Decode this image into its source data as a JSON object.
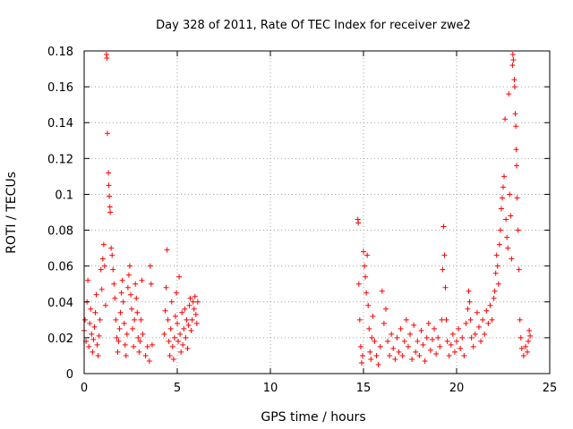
{
  "chart_data": {
    "type": "scatter",
    "title": "Day 328 of 2011, Rate Of TEC Index for receiver zwe2",
    "xlabel": "GPS time / hours",
    "ylabel": "ROTI / TECUs",
    "xlim": [
      0,
      25
    ],
    "ylim": [
      0,
      0.18
    ],
    "xticks": [
      "0",
      "5",
      "10",
      "15",
      "20",
      "25"
    ],
    "yticks": [
      "0",
      "0.02",
      "0.04",
      "0.06",
      "0.08",
      "0.1",
      "0.12",
      "0.14",
      "0.16",
      "0.18"
    ],
    "grid": true,
    "marker": "+",
    "color": "#ff0000",
    "series": [
      {
        "points": [
          [
            0.0,
            0.024
          ],
          [
            0.05,
            0.03
          ],
          [
            0.1,
            0.018
          ],
          [
            0.15,
            0.04
          ],
          [
            0.2,
            0.052
          ],
          [
            0.25,
            0.015
          ],
          [
            0.3,
            0.028
          ],
          [
            0.35,
            0.036
          ],
          [
            0.4,
            0.022
          ],
          [
            0.45,
            0.012
          ],
          [
            0.5,
            0.019
          ],
          [
            0.55,
            0.026
          ],
          [
            0.6,
            0.034
          ],
          [
            0.65,
            0.044
          ],
          [
            0.7,
            0.016
          ],
          [
            0.75,
            0.01
          ],
          [
            0.8,
            0.021
          ],
          [
            0.85,
            0.03
          ],
          [
            0.9,
            0.058
          ],
          [
            0.95,
            0.047
          ],
          [
            1.0,
            0.064
          ],
          [
            1.05,
            0.072
          ],
          [
            1.1,
            0.06
          ],
          [
            1.15,
            0.038
          ],
          [
            1.2,
            0.178
          ],
          [
            1.22,
            0.176
          ],
          [
            1.25,
            0.134
          ],
          [
            1.3,
            0.112
          ],
          [
            1.32,
            0.105
          ],
          [
            1.35,
            0.099
          ],
          [
            1.38,
            0.093
          ],
          [
            1.4,
            0.09
          ],
          [
            1.45,
            0.07
          ],
          [
            1.5,
            0.066
          ],
          [
            1.55,
            0.058
          ],
          [
            1.6,
            0.05
          ],
          [
            1.65,
            0.042
          ],
          [
            1.7,
            0.03
          ],
          [
            1.75,
            0.02
          ],
          [
            1.8,
            0.012
          ],
          [
            1.85,
            0.018
          ],
          [
            1.9,
            0.025
          ],
          [
            1.95,
            0.034
          ],
          [
            2.0,
            0.045
          ],
          [
            2.05,
            0.052
          ],
          [
            2.1,
            0.04
          ],
          [
            2.15,
            0.028
          ],
          [
            2.2,
            0.016
          ],
          [
            2.25,
            0.01
          ],
          [
            2.3,
            0.022
          ],
          [
            2.35,
            0.048
          ],
          [
            2.4,
            0.055
          ],
          [
            2.45,
            0.06
          ],
          [
            2.5,
            0.044
          ],
          [
            2.55,
            0.036
          ],
          [
            2.6,
            0.025
          ],
          [
            2.65,
            0.015
          ],
          [
            2.7,
            0.03
          ],
          [
            2.75,
            0.05
          ],
          [
            2.8,
            0.042
          ],
          [
            2.85,
            0.034
          ],
          [
            2.9,
            0.02
          ],
          [
            2.95,
            0.012
          ],
          [
            3.0,
            0.018
          ],
          [
            3.05,
            0.03
          ],
          [
            3.1,
            0.052
          ],
          [
            3.15,
            0.022
          ],
          [
            3.3,
            0.01
          ],
          [
            3.4,
            0.015
          ],
          [
            3.5,
            0.007
          ],
          [
            3.55,
            0.06
          ],
          [
            3.6,
            0.05
          ],
          [
            3.65,
            0.016
          ],
          [
            4.3,
            0.022
          ],
          [
            4.35,
            0.035
          ],
          [
            4.4,
            0.048
          ],
          [
            4.45,
            0.069
          ],
          [
            4.5,
            0.03
          ],
          [
            4.55,
            0.018
          ],
          [
            4.6,
            0.01
          ],
          [
            4.65,
            0.025
          ],
          [
            4.7,
            0.04
          ],
          [
            4.75,
            0.015
          ],
          [
            4.8,
            0.008
          ],
          [
            4.85,
            0.02
          ],
          [
            4.9,
            0.032
          ],
          [
            4.95,
            0.045
          ],
          [
            5.0,
            0.028
          ],
          [
            5.05,
            0.018
          ],
          [
            5.1,
            0.054
          ],
          [
            5.15,
            0.022
          ],
          [
            5.2,
            0.012
          ],
          [
            5.25,
            0.034
          ],
          [
            5.3,
            0.016
          ],
          [
            5.35,
            0.025
          ],
          [
            5.4,
            0.036
          ],
          [
            5.45,
            0.02
          ],
          [
            5.5,
            0.03
          ],
          [
            5.55,
            0.014
          ],
          [
            5.6,
            0.027
          ],
          [
            5.65,
            0.038
          ],
          [
            5.7,
            0.042
          ],
          [
            5.75,
            0.024
          ],
          [
            5.8,
            0.03
          ],
          [
            5.85,
            0.04
          ],
          [
            5.9,
            0.036
          ],
          [
            5.95,
            0.043
          ],
          [
            6.0,
            0.033
          ],
          [
            6.05,
            0.028
          ],
          [
            6.1,
            0.04
          ],
          [
            14.7,
            0.086
          ],
          [
            14.72,
            0.084
          ],
          [
            14.75,
            0.05
          ],
          [
            14.8,
            0.03
          ],
          [
            14.85,
            0.015
          ],
          [
            14.9,
            0.006
          ],
          [
            14.95,
            0.01
          ],
          [
            15.0,
            0.068
          ],
          [
            15.05,
            0.06
          ],
          [
            15.1,
            0.054
          ],
          [
            15.15,
            0.045
          ],
          [
            15.2,
            0.066
          ],
          [
            15.25,
            0.038
          ],
          [
            15.3,
            0.025
          ],
          [
            15.35,
            0.012
          ],
          [
            15.4,
            0.008
          ],
          [
            15.45,
            0.02
          ],
          [
            15.5,
            0.032
          ],
          [
            15.6,
            0.018
          ],
          [
            15.7,
            0.01
          ],
          [
            15.8,
            0.005
          ],
          [
            15.9,
            0.015
          ],
          [
            16.0,
            0.046
          ],
          [
            16.1,
            0.028
          ],
          [
            16.2,
            0.036
          ],
          [
            16.3,
            0.018
          ],
          [
            16.4,
            0.01
          ],
          [
            16.5,
            0.022
          ],
          [
            16.6,
            0.014
          ],
          [
            16.7,
            0.008
          ],
          [
            16.8,
            0.02
          ],
          [
            16.9,
            0.012
          ],
          [
            17.0,
            0.025
          ],
          [
            17.1,
            0.01
          ],
          [
            17.2,
            0.018
          ],
          [
            17.3,
            0.03
          ],
          [
            17.4,
            0.015
          ],
          [
            17.5,
            0.022
          ],
          [
            17.6,
            0.008
          ],
          [
            17.7,
            0.027
          ],
          [
            17.8,
            0.012
          ],
          [
            17.9,
            0.018
          ],
          [
            18.0,
            0.01
          ],
          [
            18.1,
            0.024
          ],
          [
            18.2,
            0.016
          ],
          [
            18.3,
            0.007
          ],
          [
            18.4,
            0.02
          ],
          [
            18.5,
            0.028
          ],
          [
            18.6,
            0.013
          ],
          [
            18.7,
            0.019
          ],
          [
            18.8,
            0.025
          ],
          [
            18.9,
            0.011
          ],
          [
            19.0,
            0.02
          ],
          [
            19.1,
            0.015
          ],
          [
            19.2,
            0.03
          ],
          [
            19.25,
            0.058
          ],
          [
            19.3,
            0.082
          ],
          [
            19.35,
            0.066
          ],
          [
            19.4,
            0.048
          ],
          [
            19.45,
            0.03
          ],
          [
            19.5,
            0.018
          ],
          [
            19.6,
            0.01
          ],
          [
            19.7,
            0.016
          ],
          [
            19.8,
            0.022
          ],
          [
            19.9,
            0.012
          ],
          [
            20.0,
            0.018
          ],
          [
            20.1,
            0.025
          ],
          [
            20.2,
            0.014
          ],
          [
            20.3,
            0.02
          ],
          [
            20.4,
            0.01
          ],
          [
            20.5,
            0.028
          ],
          [
            20.6,
            0.036
          ],
          [
            20.65,
            0.046
          ],
          [
            20.7,
            0.04
          ],
          [
            20.75,
            0.03
          ],
          [
            20.8,
            0.02
          ],
          [
            20.9,
            0.015
          ],
          [
            21.0,
            0.022
          ],
          [
            21.1,
            0.034
          ],
          [
            21.2,
            0.026
          ],
          [
            21.3,
            0.018
          ],
          [
            21.4,
            0.03
          ],
          [
            21.5,
            0.022
          ],
          [
            21.6,
            0.035
          ],
          [
            21.7,
            0.028
          ],
          [
            21.8,
            0.038
          ],
          [
            21.9,
            0.03
          ],
          [
            22.0,
            0.042
          ],
          [
            22.05,
            0.046
          ],
          [
            22.1,
            0.056
          ],
          [
            22.15,
            0.066
          ],
          [
            22.2,
            0.06
          ],
          [
            22.25,
            0.05
          ],
          [
            22.3,
            0.072
          ],
          [
            22.35,
            0.08
          ],
          [
            22.4,
            0.092
          ],
          [
            22.45,
            0.098
          ],
          [
            22.5,
            0.104
          ],
          [
            22.55,
            0.11
          ],
          [
            22.6,
            0.142
          ],
          [
            22.65,
            0.086
          ],
          [
            22.7,
            0.076
          ],
          [
            22.75,
            0.07
          ],
          [
            22.8,
            0.156
          ],
          [
            22.85,
            0.1
          ],
          [
            22.9,
            0.088
          ],
          [
            22.95,
            0.064
          ],
          [
            23.0,
            0.172
          ],
          [
            23.02,
            0.178
          ],
          [
            23.05,
            0.175
          ],
          [
            23.1,
            0.164
          ],
          [
            23.12,
            0.16
          ],
          [
            23.15,
            0.145
          ],
          [
            23.18,
            0.138
          ],
          [
            23.2,
            0.125
          ],
          [
            23.22,
            0.116
          ],
          [
            23.25,
            0.098
          ],
          [
            23.3,
            0.08
          ],
          [
            23.35,
            0.058
          ],
          [
            23.4,
            0.03
          ],
          [
            23.45,
            0.02
          ],
          [
            23.5,
            0.014
          ],
          [
            23.6,
            0.01
          ],
          [
            23.7,
            0.015
          ],
          [
            23.8,
            0.012
          ],
          [
            23.85,
            0.018
          ],
          [
            23.9,
            0.024
          ],
          [
            23.95,
            0.021
          ]
        ]
      }
    ]
  }
}
